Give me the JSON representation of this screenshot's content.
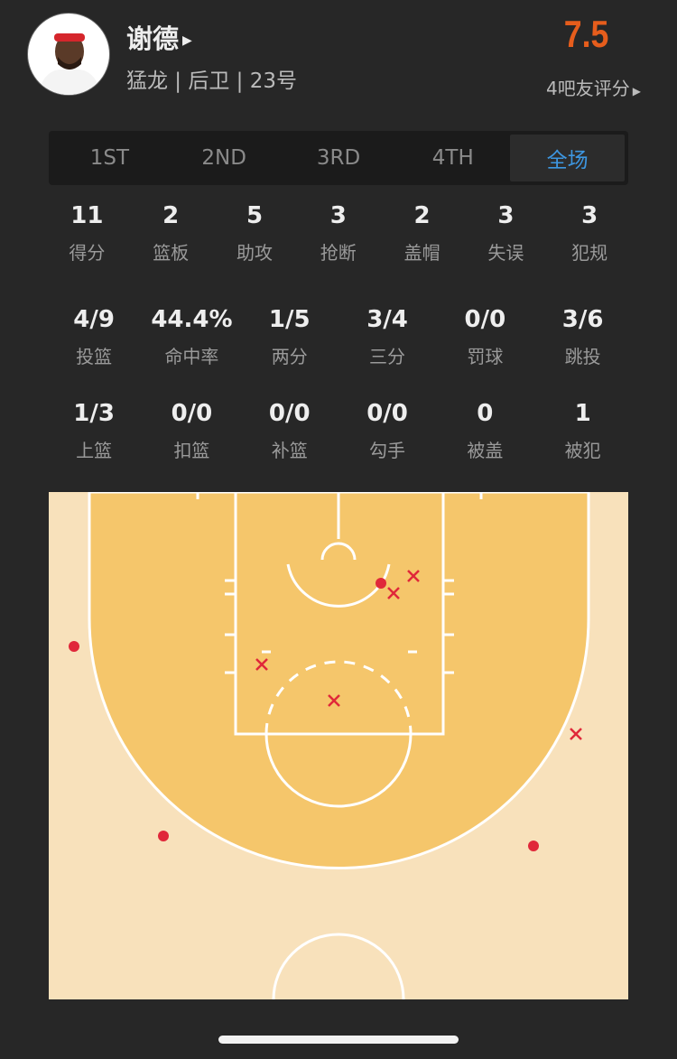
{
  "player": {
    "name": "谢德",
    "info": "猛龙 | 后卫 | 23号",
    "rating": "7.5",
    "raters_label": "4吧友评分"
  },
  "tabs": [
    {
      "label": "1ST"
    },
    {
      "label": "2ND"
    },
    {
      "label": "3RD"
    },
    {
      "label": "4TH"
    },
    {
      "label": "全场",
      "active": true
    }
  ],
  "summary": [
    {
      "value": "11",
      "label": "得分"
    },
    {
      "value": "2",
      "label": "篮板"
    },
    {
      "value": "5",
      "label": "助攻"
    },
    {
      "value": "3",
      "label": "抢断"
    },
    {
      "value": "2",
      "label": "盖帽"
    },
    {
      "value": "3",
      "label": "失误"
    },
    {
      "value": "3",
      "label": "犯规"
    }
  ],
  "shooting": [
    {
      "value": "4/9",
      "label": "投篮"
    },
    {
      "value": "44.4%",
      "label": "命中率"
    },
    {
      "value": "1/5",
      "label": "两分"
    },
    {
      "value": "3/4",
      "label": "三分"
    },
    {
      "value": "0/0",
      "label": "罚球"
    },
    {
      "value": "3/6",
      "label": "跳投"
    }
  ],
  "shot_types": [
    {
      "value": "1/3",
      "label": "上篮"
    },
    {
      "value": "0/0",
      "label": "扣篮"
    },
    {
      "value": "0/0",
      "label": "补篮"
    },
    {
      "value": "0/0",
      "label": "勾手"
    },
    {
      "value": "0",
      "label": "被盖"
    },
    {
      "value": "1",
      "label": "被犯"
    }
  ],
  "shot_chart": {
    "made": 4,
    "missed": 5
  },
  "colors": {
    "rating": "#e65d1c",
    "active_tab": "#3d96e0",
    "shot": "#e0283a",
    "court_inner": "#f5c66b",
    "court_outer": "#f8e1bb"
  }
}
